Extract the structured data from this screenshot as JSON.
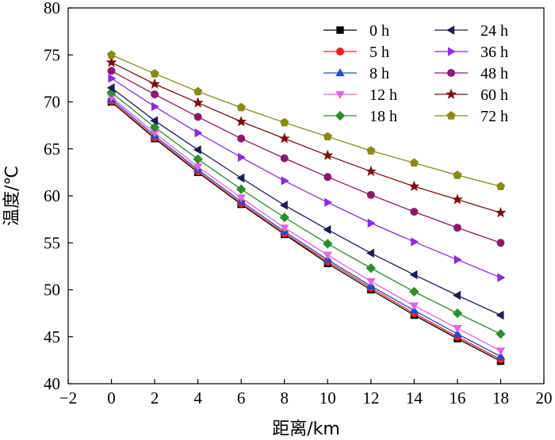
{
  "chart_data": {
    "type": "line",
    "title": "",
    "xlabel": "距离/km",
    "ylabel": "温度/℃",
    "xlim": [
      -2,
      20
    ],
    "ylim": [
      40,
      80
    ],
    "xticks": [
      -2,
      0,
      2,
      4,
      6,
      8,
      10,
      12,
      14,
      16,
      18,
      20
    ],
    "yticks": [
      40,
      45,
      50,
      55,
      60,
      65,
      70,
      75,
      80
    ],
    "x": [
      0,
      2,
      4,
      6,
      8,
      10,
      12,
      14,
      16,
      18
    ],
    "legend_position": "top-right",
    "series": [
      {
        "name": "0 h",
        "color": "#000000",
        "marker": "square",
        "values": [
          70.0,
          66.1,
          62.5,
          59.1,
          55.9,
          52.8,
          50.0,
          47.3,
          44.8,
          42.4
        ]
      },
      {
        "name": "5 h",
        "color": "#e8231f",
        "marker": "circle",
        "values": [
          70.1,
          66.2,
          62.6,
          59.2,
          56.0,
          53.0,
          50.2,
          47.5,
          45.0,
          42.6
        ]
      },
      {
        "name": "8 h",
        "color": "#2a48c8",
        "marker": "triangle-up",
        "values": [
          70.3,
          66.4,
          62.8,
          59.4,
          56.2,
          53.2,
          50.4,
          47.8,
          45.3,
          42.9
        ]
      },
      {
        "name": "12 h",
        "color": "#e064e0",
        "marker": "triangle-down",
        "values": [
          70.5,
          66.7,
          63.1,
          59.8,
          56.6,
          53.7,
          50.9,
          48.3,
          45.9,
          43.5
        ]
      },
      {
        "name": "18 h",
        "color": "#2e8b2e",
        "marker": "diamond",
        "values": [
          71.0,
          67.3,
          63.9,
          60.7,
          57.7,
          54.9,
          52.3,
          49.8,
          47.5,
          45.3
        ]
      },
      {
        "name": "24 h",
        "color": "#1c1c5a",
        "marker": "triangle-left",
        "values": [
          71.5,
          68.0,
          64.9,
          61.9,
          59.0,
          56.4,
          53.9,
          51.6,
          49.4,
          47.3
        ]
      },
      {
        "name": "36 h",
        "color": "#8a2be2",
        "marker": "triangle-right",
        "values": [
          72.5,
          69.5,
          66.7,
          64.1,
          61.6,
          59.3,
          57.1,
          55.1,
          53.2,
          51.3
        ]
      },
      {
        "name": "48 h",
        "color": "#8b1a6b",
        "marker": "circle",
        "values": [
          73.3,
          70.8,
          68.4,
          66.1,
          64.0,
          62.0,
          60.1,
          58.3,
          56.6,
          55.0
        ]
      },
      {
        "name": "60 h",
        "color": "#7a1010",
        "marker": "star",
        "values": [
          74.2,
          71.9,
          69.9,
          67.9,
          66.1,
          64.3,
          62.6,
          61.0,
          59.6,
          58.2
        ]
      },
      {
        "name": "72 h",
        "color": "#8a8a1a",
        "marker": "pentagon",
        "values": [
          75.0,
          73.0,
          71.1,
          69.4,
          67.8,
          66.3,
          64.8,
          63.5,
          62.2,
          61.0
        ]
      }
    ]
  }
}
